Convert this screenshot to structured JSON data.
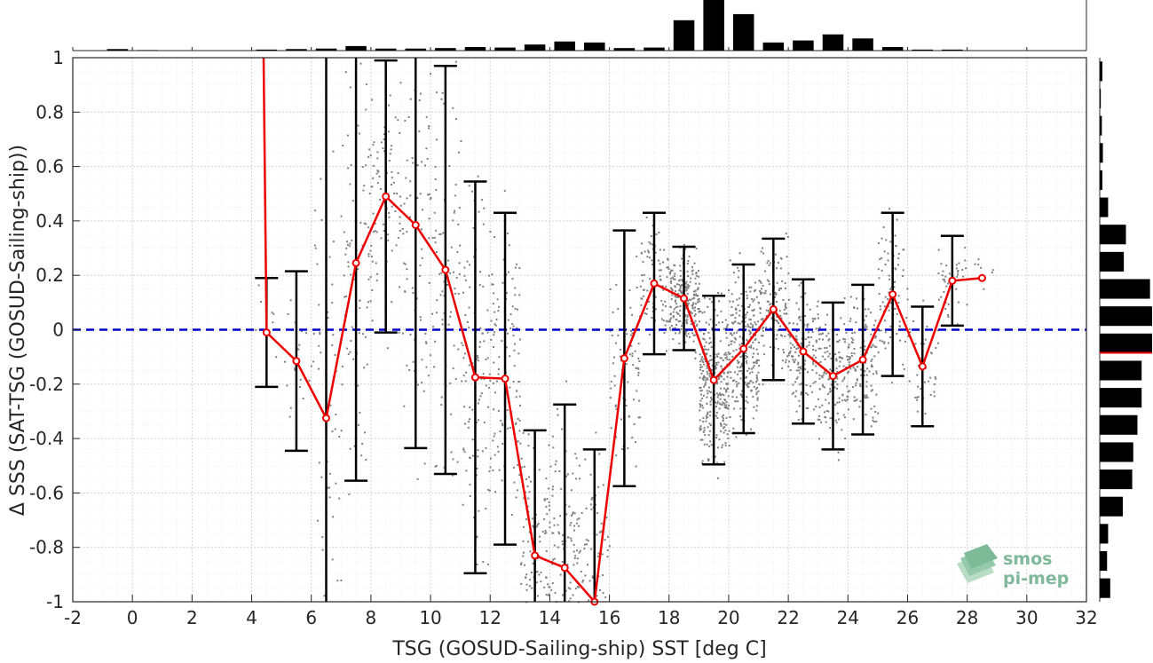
{
  "chart_data": {
    "type": "scatter",
    "xlabel": "TSG (GOSUD-Sailing-ship) SST [deg C]",
    "ylabel": "Δ SSS (SAT-TSG (GOSUD-Sailing-ship))",
    "xlim": [
      -2,
      32
    ],
    "ylim": [
      -1,
      1
    ],
    "xticks": [
      "-2",
      "0",
      "2",
      "4",
      "6",
      "8",
      "10",
      "12",
      "14",
      "16",
      "18",
      "20",
      "22",
      "24",
      "26",
      "28",
      "30",
      "32"
    ],
    "yticks": [
      "-1",
      "-0.8",
      "-0.6",
      "-0.4",
      "-0.2",
      "0",
      "0.2",
      "0.4",
      "0.6",
      "0.8",
      "1"
    ],
    "grid": true,
    "reference_line": {
      "y": 0,
      "style": "dashed",
      "color": "#0000cc"
    },
    "colors": {
      "scatter": "#808080",
      "mean_line": "#ee0000",
      "errorbar": "#000000",
      "bars": "#000000"
    },
    "mean_series": {
      "x": [
        4.5,
        5.5,
        6.5,
        7.5,
        8.5,
        9.5,
        10.5,
        11.5,
        12.5,
        13.5,
        14.5,
        15.5,
        16.5,
        17.5,
        18.5,
        19.5,
        20.5,
        21.5,
        22.5,
        23.5,
        24.5,
        25.5,
        26.5,
        27.5,
        28.5
      ],
      "y": [
        -0.01,
        -0.115,
        -0.325,
        0.245,
        0.49,
        0.385,
        0.22,
        -0.175,
        -0.18,
        -0.83,
        -0.875,
        -1.0,
        -0.105,
        0.17,
        0.115,
        -0.185,
        -0.07,
        0.075,
        -0.08,
        -0.17,
        -0.11,
        0.13,
        -0.135,
        0.18,
        0.19
      ],
      "std": [
        0.2,
        0.33,
        1.5,
        0.8,
        0.5,
        0.82,
        0.75,
        0.72,
        0.61,
        0.46,
        0.6,
        0.56,
        0.47,
        0.26,
        0.19,
        0.31,
        0.31,
        0.26,
        0.265,
        0.27,
        0.275,
        0.3,
        0.22,
        0.165,
        0.0
      ]
    },
    "leading_segment": {
      "x": [
        4.4,
        4.5
      ],
      "y": [
        1.0,
        -0.01
      ]
    },
    "top_histogram": {
      "x": [
        -0.5,
        0.5,
        1.5,
        2.5,
        3.5,
        4.5,
        5.5,
        6.5,
        7.5,
        8.5,
        9.5,
        10.5,
        11.5,
        12.5,
        13.5,
        14.5,
        15.5,
        16.5,
        17.5,
        18.5,
        19.5,
        20.5,
        21.5,
        22.5,
        23.5,
        24.5,
        25.5,
        26.5,
        27.5
      ],
      "values": [
        0.03,
        0.01,
        0.0,
        0.0,
        0.0,
        0.02,
        0.03,
        0.04,
        0.09,
        0.04,
        0.04,
        0.05,
        0.07,
        0.06,
        0.12,
        0.18,
        0.16,
        0.05,
        0.06,
        0.6,
        1.0,
        0.72,
        0.16,
        0.2,
        0.32,
        0.24,
        0.07,
        0.02,
        0.02
      ]
    },
    "right_histogram": {
      "y": [
        0.95,
        0.85,
        0.75,
        0.65,
        0.55,
        0.45,
        0.35,
        0.25,
        0.15,
        0.05,
        -0.05,
        -0.15,
        -0.25,
        -0.35,
        -0.45,
        -0.55,
        -0.65,
        -0.75,
        -0.85,
        -0.95
      ],
      "values": [
        0.05,
        0.02,
        0.04,
        0.06,
        0.05,
        0.16,
        0.5,
        0.46,
        0.96,
        1.0,
        1.0,
        0.8,
        0.8,
        0.72,
        0.64,
        0.62,
        0.44,
        0.16,
        0.14,
        0.2
      ]
    },
    "right_hist_marker": -0.085
  },
  "logo": {
    "line1": "smos",
    "line2": "pi-mep"
  }
}
